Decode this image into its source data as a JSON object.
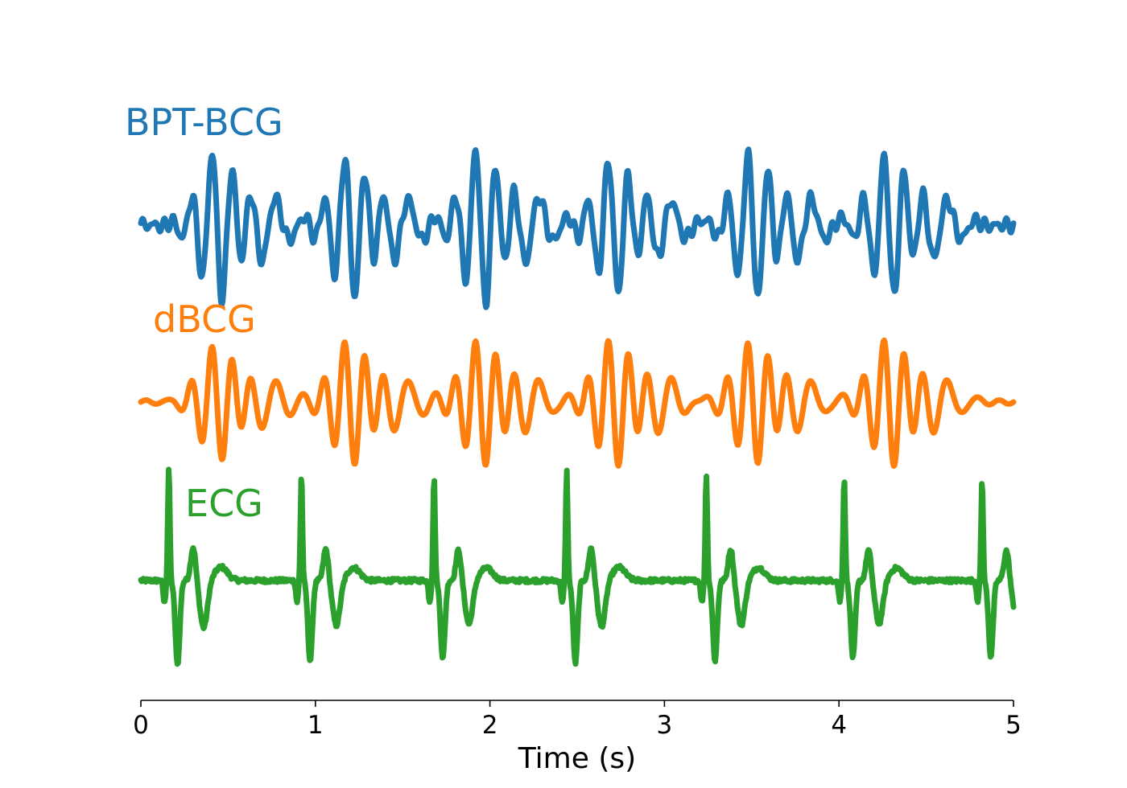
{
  "chart_data": {
    "type": "line",
    "xlabel": "Time (s)",
    "xlim": [
      0,
      5
    ],
    "xticks": [
      "0",
      "1",
      "2",
      "3",
      "4",
      "5"
    ],
    "y_axis_visible": false,
    "grid": false,
    "series": [
      {
        "name": "BPT-BCG",
        "color": "#1f77b4",
        "beat_times": [
          0.4,
          1.16,
          1.91,
          2.67,
          3.47,
          4.25
        ],
        "beat_amplitude": [
          1.0,
          0.95,
          1.05,
          0.9,
          0.98,
          0.95
        ],
        "style": "bcg"
      },
      {
        "name": "dBCG",
        "color": "#ff7f0e",
        "beat_times": [
          0.4,
          1.16,
          1.91,
          2.67,
          3.47,
          4.25
        ],
        "beat_amplitude": [
          0.95,
          1.0,
          0.98,
          1.0,
          0.95,
          1.0
        ],
        "style": "bcg_smooth"
      },
      {
        "name": "ECG",
        "color": "#2ca02c",
        "beat_times": [
          0.16,
          0.92,
          1.68,
          2.44,
          3.24,
          4.03,
          4.82
        ],
        "beat_amplitude": [
          1.0,
          0.95,
          0.92,
          0.98,
          0.95,
          0.92,
          0.9
        ],
        "style": "ecg"
      }
    ]
  }
}
